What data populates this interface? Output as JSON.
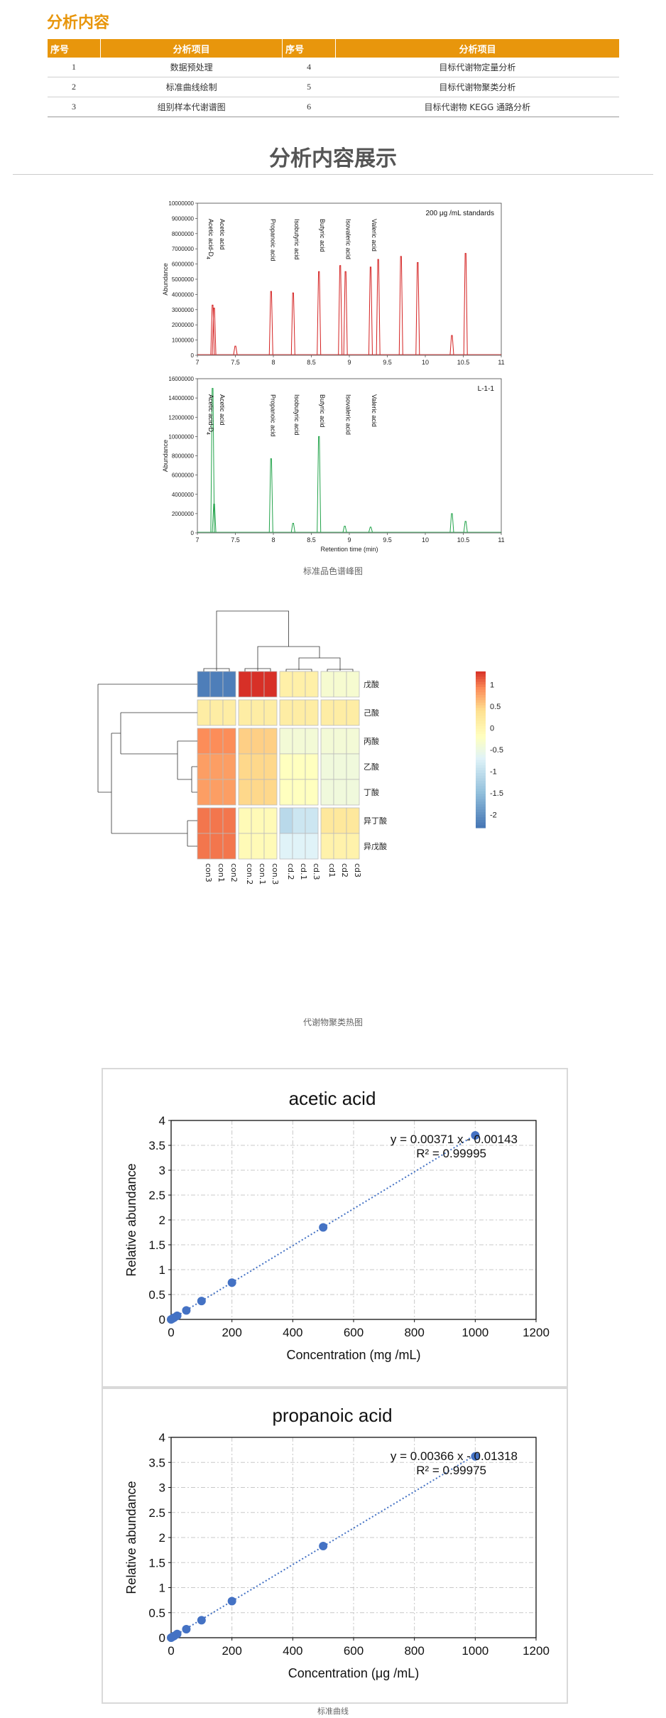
{
  "section_title": "分析内容",
  "table": {
    "headers": [
      "序号",
      "分析项目",
      "序号",
      "分析项目"
    ],
    "rows": [
      {
        "no1": "1",
        "item1": "数据预处理",
        "no2": "4",
        "item2": "目标代谢物定量分析"
      },
      {
        "no1": "2",
        "item1": "标准曲线绘制",
        "no2": "5",
        "item2": "目标代谢物聚类分析"
      },
      {
        "no1": "3",
        "item1": "组别样本代谢谱图",
        "no2": "6",
        "item2": "目标代谢物 KEGG 通路分析"
      }
    ]
  },
  "showcase_title": "分析内容展示",
  "captions": {
    "chromatogram": "标准品色谱峰图",
    "heatmap": "代谢物聚类热图",
    "curves": "标准曲线"
  },
  "colors": {
    "accent": "#e8960c",
    "red_trace": "#d42020",
    "green_trace": "#22a34a",
    "curve_point": "#4472c4"
  },
  "chart_data": [
    {
      "type": "line",
      "id": "chromatogram-standards",
      "legend_text": "200 μg /mL standards",
      "ylabel": "Abundance",
      "xlim": [
        7,
        11
      ],
      "ylim": [
        0,
        10000000
      ],
      "x_ticks": [
        7,
        7.5,
        8,
        8.5,
        9,
        9.5,
        10,
        10.5,
        11
      ],
      "y_ticks": [
        0,
        1000000,
        2000000,
        3000000,
        4000000,
        5000000,
        6000000,
        7000000,
        8000000,
        9000000,
        10000000
      ],
      "peaks": [
        {
          "x": 7.2,
          "y": 3300000
        },
        {
          "x": 7.22,
          "y": 3100000
        },
        {
          "x": 7.5,
          "y": 600000
        },
        {
          "x": 7.97,
          "y": 4200000
        },
        {
          "x": 8.26,
          "y": 4100000
        },
        {
          "x": 8.6,
          "y": 5500000
        },
        {
          "x": 8.88,
          "y": 5900000
        },
        {
          "x": 8.95,
          "y": 5500000
        },
        {
          "x": 9.28,
          "y": 5800000
        },
        {
          "x": 9.38,
          "y": 6300000
        },
        {
          "x": 9.68,
          "y": 6500000
        },
        {
          "x": 9.9,
          "y": 6100000
        },
        {
          "x": 10.35,
          "y": 1300000
        },
        {
          "x": 10.53,
          "y": 6700000
        }
      ],
      "annotations": [
        {
          "text": "Acetic acid-D",
          "sub": "4",
          "x": 7.15
        },
        {
          "text": "Acetic acid",
          "x": 7.28
        },
        {
          "text": "Propanoic acid",
          "x": 7.95
        },
        {
          "text": "Isobutyric acid",
          "x": 8.26
        },
        {
          "text": "Butyric acid",
          "x": 8.6
        },
        {
          "text": "Isovaleric acid",
          "x": 8.94
        },
        {
          "text": "Valeric acid",
          "x": 9.28
        }
      ]
    },
    {
      "type": "line",
      "id": "chromatogram-sample",
      "legend_text": "L-1-1",
      "xlabel": "Retention time (min)",
      "ylabel": "Abundance",
      "xlim": [
        7,
        11
      ],
      "ylim": [
        0,
        16000000
      ],
      "x_ticks": [
        7,
        7.5,
        8,
        8.5,
        9,
        9.5,
        10,
        10.5,
        11
      ],
      "y_ticks": [
        0,
        2000000,
        4000000,
        6000000,
        8000000,
        10000000,
        12000000,
        14000000,
        16000000
      ],
      "peaks": [
        {
          "x": 7.2,
          "y": 15000000
        },
        {
          "x": 7.22,
          "y": 3000000
        },
        {
          "x": 7.97,
          "y": 7700000
        },
        {
          "x": 8.26,
          "y": 1000000
        },
        {
          "x": 8.6,
          "y": 10000000
        },
        {
          "x": 8.94,
          "y": 700000
        },
        {
          "x": 9.28,
          "y": 600000
        },
        {
          "x": 10.35,
          "y": 2000000
        },
        {
          "x": 10.53,
          "y": 1200000
        }
      ],
      "annotations": [
        {
          "text": "Acetic acid-D",
          "sub": "4",
          "x": 7.15
        },
        {
          "text": "Acetic acid",
          "x": 7.28
        },
        {
          "text": "Propanoic acid",
          "x": 7.95
        },
        {
          "text": "Isobutyric acid",
          "x": 8.26
        },
        {
          "text": "Butyric acid",
          "x": 8.6
        },
        {
          "text": "Isovaleric acid",
          "x": 8.94
        },
        {
          "text": "Valeric acid",
          "x": 9.28
        }
      ]
    },
    {
      "type": "heatmap",
      "id": "cluster-heatmap",
      "columns": [
        "con3",
        "con1",
        "con2",
        "con.2",
        "con.1",
        "con.3",
        "cd.2",
        "cd.1",
        "cd.3",
        "cd1",
        "cd2",
        "cd3"
      ],
      "rows": [
        "戊酸",
        "己酸",
        "丙酸",
        "乙酸",
        "丁酸",
        "异丁酸",
        "异戊酸"
      ],
      "values": [
        [
          -2.2,
          -2.2,
          -2.2,
          1.35,
          1.35,
          1.35,
          0.1,
          0.1,
          0.1,
          -0.35,
          -0.35,
          -0.35
        ],
        [
          0.15,
          0.15,
          0.15,
          0.15,
          0.15,
          0.15,
          0.15,
          0.15,
          0.15,
          0.15,
          0.15,
          0.15
        ],
        [
          0.9,
          0.9,
          0.9,
          0.5,
          0.5,
          0.5,
          -0.4,
          -0.4,
          -0.4,
          -0.4,
          -0.4,
          -0.4
        ],
        [
          0.8,
          0.8,
          0.8,
          0.45,
          0.45,
          0.45,
          -0.2,
          -0.2,
          -0.2,
          -0.45,
          -0.45,
          -0.45
        ],
        [
          0.8,
          0.8,
          0.8,
          0.45,
          0.45,
          0.45,
          -0.2,
          -0.2,
          -0.2,
          -0.45,
          -0.45,
          -0.45
        ],
        [
          1.0,
          1.0,
          1.0,
          -0.1,
          -0.1,
          -0.1,
          -1.1,
          -0.9,
          -0.9,
          0.25,
          0.25,
          0.25
        ],
        [
          1.0,
          1.0,
          1.0,
          -0.1,
          -0.1,
          -0.1,
          -0.7,
          -0.7,
          -0.7,
          0.05,
          0.05,
          0.05
        ]
      ],
      "colorbar_ticks": [
        1,
        0.5,
        0,
        -0.5,
        -1,
        -1.5,
        -2
      ],
      "colorbar_range": [
        -2.3,
        1.3
      ]
    },
    {
      "type": "scatter",
      "id": "curve-acetic",
      "title": "acetic acid",
      "xlabel": "Concentration (mg /mL)",
      "ylabel": "Relative abundance",
      "xlim": [
        0,
        1200
      ],
      "ylim": [
        0,
        4
      ],
      "x_ticks": [
        0,
        200,
        400,
        600,
        800,
        1000,
        1200
      ],
      "y_ticks": [
        0,
        0.5,
        1,
        1.5,
        2,
        2.5,
        3,
        3.5,
        4
      ],
      "x": [
        0,
        5,
        10,
        20,
        50,
        100,
        200,
        500,
        1000
      ],
      "y": [
        0.0,
        0.017,
        0.035,
        0.073,
        0.18,
        0.37,
        0.74,
        1.85,
        3.7
      ],
      "equation": "y = 0.00371 x - 0.00143",
      "r2": "R² = 0.99995",
      "fit": {
        "slope": 0.00371,
        "intercept": -0.00143
      }
    },
    {
      "type": "scatter",
      "id": "curve-propanoic",
      "title": "propanoic acid",
      "xlabel": "Concentration (μg /mL)",
      "ylabel": "Relative abundance",
      "xlim": [
        0,
        1200
      ],
      "ylim": [
        0,
        4
      ],
      "x_ticks": [
        0,
        200,
        400,
        600,
        800,
        1000,
        1200
      ],
      "y_ticks": [
        0,
        0.5,
        1,
        1.5,
        2,
        2.5,
        3,
        3.5,
        4
      ],
      "x": [
        0,
        5,
        10,
        20,
        50,
        100,
        200,
        500,
        1000
      ],
      "y": [
        0.0,
        0.02,
        0.035,
        0.075,
        0.17,
        0.35,
        0.73,
        1.83,
        3.62
      ],
      "equation": "y = 0.00366 x - 0.01318",
      "r2": "R² = 0.99975",
      "fit": {
        "slope": 0.00366,
        "intercept": -0.01318
      }
    }
  ]
}
